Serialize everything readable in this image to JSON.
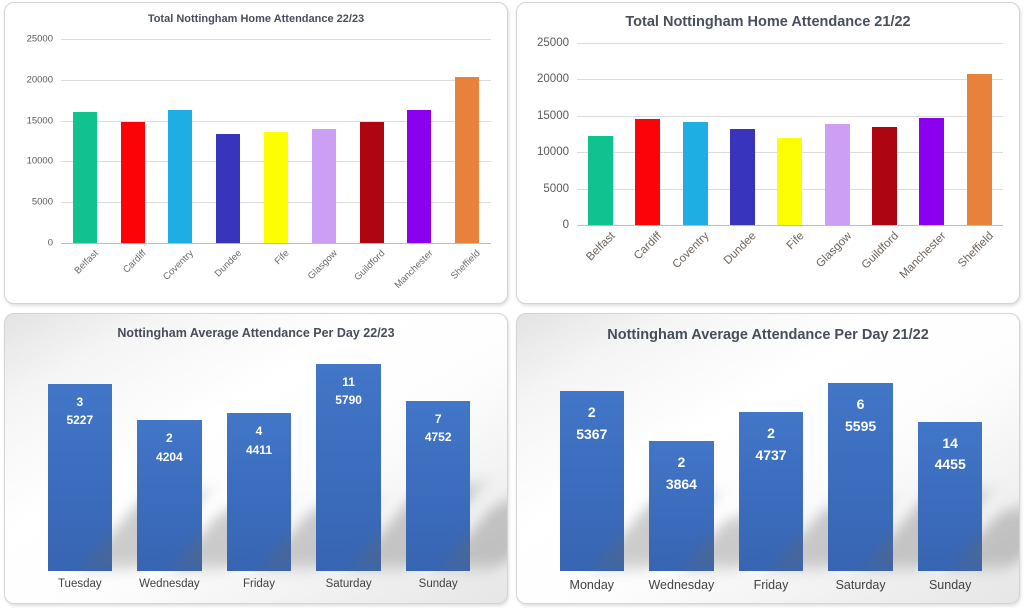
{
  "page": {
    "background": "#ffffff",
    "grid_color": "#dcdcdc",
    "axis_text_color": "#595959",
    "title_color": "#47505c"
  },
  "chart_data": [
    {
      "id": "total-home-attendance-2223",
      "type": "bar",
      "title": "Total Nottingham Home Attendance 22/23",
      "categories": [
        "Belfast",
        "Cardiff",
        "Coventry",
        "Dundee",
        "Fife",
        "Glasgow",
        "Guildford",
        "Manchester",
        "Sheffield"
      ],
      "values": [
        16000,
        14800,
        16300,
        13300,
        13600,
        14000,
        14800,
        16300,
        20300
      ],
      "bar_colors": [
        "#10c28d",
        "#fb0307",
        "#1faee4",
        "#3834bc",
        "#fdfd04",
        "#cc9ff5",
        "#ae0611",
        "#8b00ee",
        "#e8813c"
      ],
      "xlabel": "",
      "ylabel": "",
      "ylim": [
        0,
        25000
      ],
      "yticks": [
        0,
        5000,
        10000,
        15000,
        20000,
        25000
      ],
      "grid": "horizontal",
      "legend": "none"
    },
    {
      "id": "total-home-attendance-2122",
      "type": "bar",
      "title": "Total Nottingham Home Attendance 21/22",
      "categories": [
        "Belfast",
        "Cardiff",
        "Coventry",
        "Dundee",
        "Fife",
        "Glasgow",
        "Guildford",
        "Manchester",
        "Sheffield"
      ],
      "values": [
        12200,
        14500,
        14100,
        13200,
        11900,
        13900,
        13400,
        14700,
        20800
      ],
      "bar_colors": [
        "#10c28d",
        "#fb0307",
        "#1faee4",
        "#3834bc",
        "#fdfd04",
        "#cc9ff5",
        "#ae0611",
        "#8b00ee",
        "#e8813c"
      ],
      "xlabel": "",
      "ylabel": "",
      "ylim": [
        0,
        25000
      ],
      "yticks": [
        0,
        5000,
        10000,
        15000,
        20000,
        25000
      ],
      "grid": "horizontal",
      "legend": "none"
    },
    {
      "id": "average-attendance-per-day-2223",
      "type": "bar",
      "title": "Nottingham Average Attendance Per Day 22/23",
      "categories": [
        "Tuesday",
        "Wednesday",
        "Friday",
        "Saturday",
        "Sunday"
      ],
      "series": [
        {
          "name": "count",
          "values": [
            3,
            2,
            4,
            11,
            7
          ]
        },
        {
          "name": "average",
          "values": [
            5227,
            4204,
            4411,
            5790,
            4752
          ]
        }
      ],
      "bar_color": "#3b6cbd",
      "label_color": "#ffffff",
      "value_scale_max": 6000,
      "grid": "off",
      "legend": "none"
    },
    {
      "id": "average-attendance-per-day-2122",
      "type": "bar",
      "title": "Nottingham Average Attendance Per Day 21/22",
      "categories": [
        "Monday",
        "Wednesday",
        "Friday",
        "Saturday",
        "Sunday"
      ],
      "series": [
        {
          "name": "count",
          "values": [
            2,
            2,
            2,
            6,
            14
          ]
        },
        {
          "name": "average",
          "values": [
            5367,
            3864,
            4737,
            5595,
            4455
          ]
        }
      ],
      "bar_color": "#3b6cbd",
      "label_color": "#ffffff",
      "value_scale_max": 6200,
      "grid": "off",
      "legend": "none"
    }
  ]
}
